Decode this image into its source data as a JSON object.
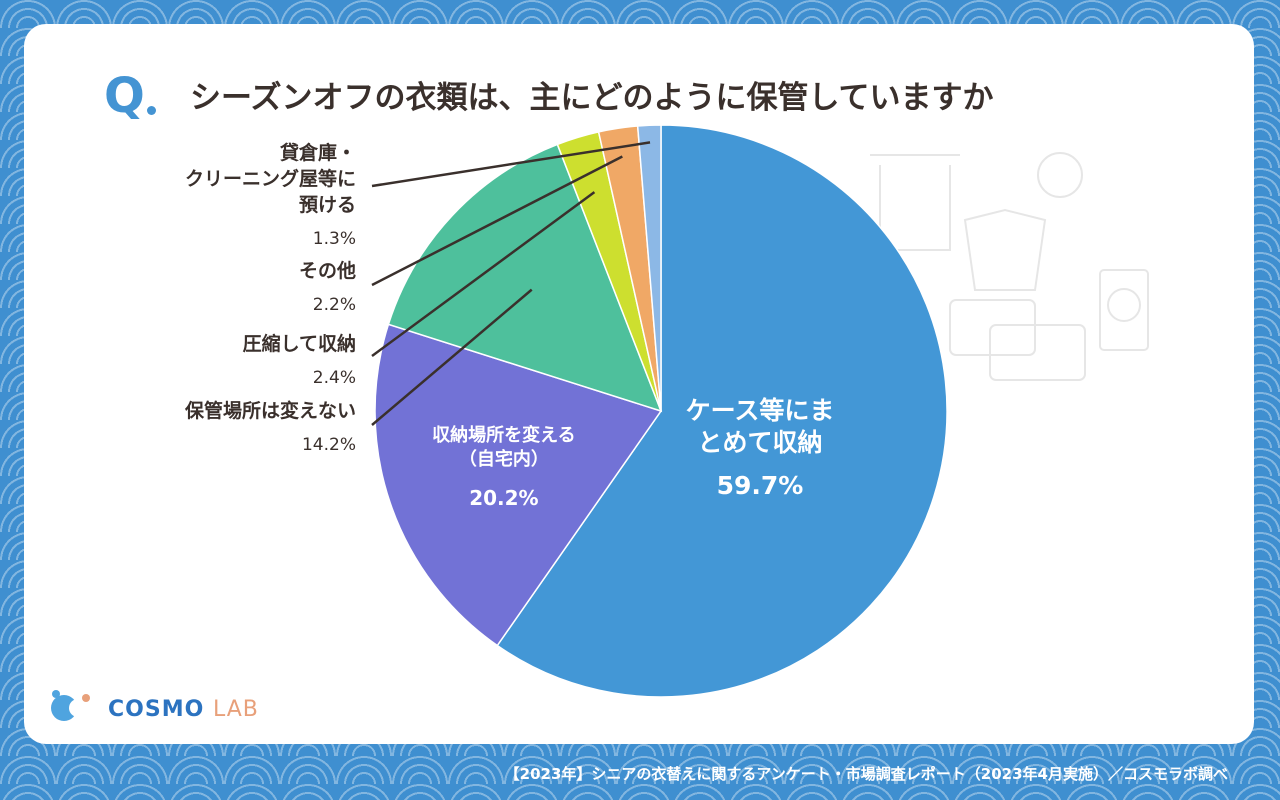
{
  "header": {
    "q_mark": "Q",
    "title": "シーズンオフの衣類は、主にどのように保管していますか"
  },
  "chart_data": {
    "type": "pie",
    "title": "シーズンオフの衣類は、主にどのように保管していますか",
    "slices": [
      {
        "label": "ケース等にまとめて収納",
        "display": "ケース等にま\nとめて収納",
        "value": 59.7,
        "value_label": "59.7%",
        "color": "#4397d6"
      },
      {
        "label": "収納場所を変える（自宅内）",
        "display": "収納場所を変える\n（自宅内）",
        "value": 20.2,
        "value_label": "20.2%",
        "color": "#7272d6"
      },
      {
        "label": "保管場所は変えない",
        "display": "保管場所は変えない",
        "value": 14.2,
        "value_label": "14.2%",
        "color": "#4ec09c"
      },
      {
        "label": "圧縮して収納",
        "display": "圧縮して収納",
        "value": 2.4,
        "value_label": "2.4%",
        "color": "#cddf2f"
      },
      {
        "label": "その他",
        "display": "その他",
        "value": 2.2,
        "value_label": "2.2%",
        "color": "#f0a866"
      },
      {
        "label": "貸倉庫・クリーニング屋等に預ける",
        "display": "貸倉庫・\nクリーニング屋等に\n預ける",
        "value": 1.3,
        "value_label": "1.3%",
        "color": "#8cb8e6"
      }
    ]
  },
  "logo": {
    "brand": "COSMO",
    "suffix": "LAB"
  },
  "footer": {
    "source": "【2023年】シニアの衣替えに関するアンケート・市場調査レポート（2023年4月実施）／コスモラボ調べ"
  }
}
